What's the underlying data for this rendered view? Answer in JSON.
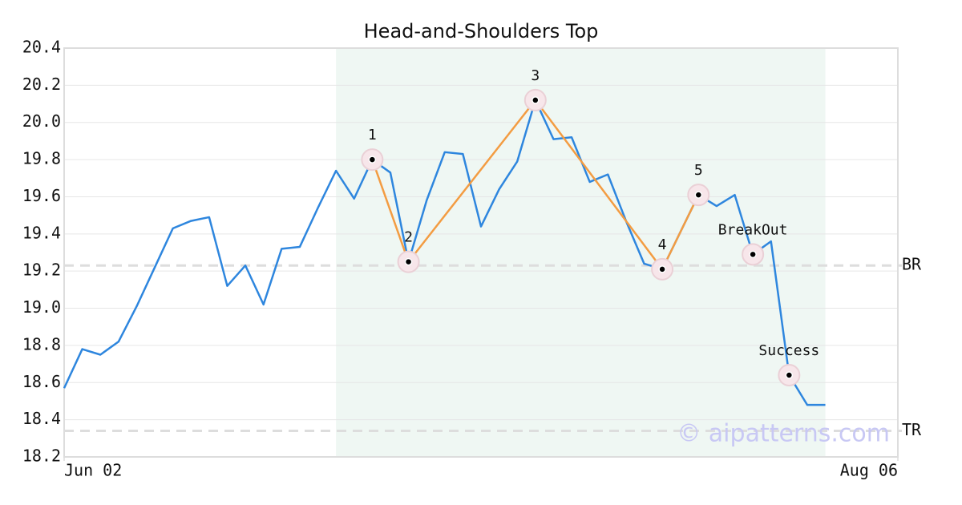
{
  "chart_data": {
    "type": "line",
    "title": "Head-and-Shoulders Top",
    "x": [
      0,
      1,
      2,
      3,
      4,
      5,
      6,
      7,
      8,
      9,
      10,
      11,
      12,
      13,
      14,
      15,
      16,
      17,
      18,
      19,
      20,
      21,
      22,
      23,
      24,
      25,
      26,
      27,
      28,
      29,
      30,
      31,
      32,
      33,
      34,
      35,
      36,
      37,
      38,
      39,
      40,
      41,
      42
    ],
    "series": [
      {
        "color": "#2e86de",
        "values": [
          18.57,
          18.78,
          18.75,
          18.82,
          19.01,
          19.22,
          19.43,
          19.47,
          19.49,
          19.12,
          19.23,
          19.02,
          19.32,
          19.33,
          19.54,
          19.74,
          19.59,
          19.8,
          19.73,
          19.25,
          19.58,
          19.84,
          19.83,
          19.44,
          19.64,
          19.79,
          20.12,
          19.91,
          19.92,
          19.68,
          19.72,
          19.47,
          19.24,
          19.21,
          19.41,
          19.61,
          19.55,
          19.61,
          19.29,
          19.36,
          18.64,
          18.48,
          18.48
        ]
      }
    ],
    "xlim": [
      0,
      46
    ],
    "xticks": [
      {
        "value": 0,
        "label": "Jun 02"
      },
      {
        "value": 46,
        "label": "Aug 06"
      }
    ],
    "ylim": [
      18.2,
      20.4
    ],
    "yticks": [
      18.2,
      18.4,
      18.6,
      18.8,
      {
        "value": 19.0,
        "label": "19.0"
      },
      19.2,
      19.4,
      19.6,
      19.8,
      {
        "value": 20.0,
        "label": "20.0"
      },
      20.2,
      20.4
    ],
    "grid": true,
    "pattern_region": [
      15,
      42
    ],
    "pattern_color": "#f39c42",
    "pattern_points": [
      {
        "label": "1",
        "x": 17,
        "value": 19.8
      },
      {
        "label": "2",
        "x": 19,
        "value": 19.25
      },
      {
        "label": "3",
        "x": 26,
        "value": 20.12
      },
      {
        "label": "4",
        "x": 33,
        "value": 19.21
      },
      {
        "label": "5",
        "x": 35,
        "value": 19.61
      }
    ],
    "signal_points": [
      {
        "label": "BreakOut",
        "x": 38,
        "value": 19.29
      },
      {
        "label": "Success",
        "x": 40,
        "value": 18.64
      }
    ],
    "reference_lines": [
      {
        "label": "BR",
        "value": 19.23
      },
      {
        "label": "TR",
        "value": 18.34
      }
    ],
    "watermark": "© aipatterns.com"
  }
}
